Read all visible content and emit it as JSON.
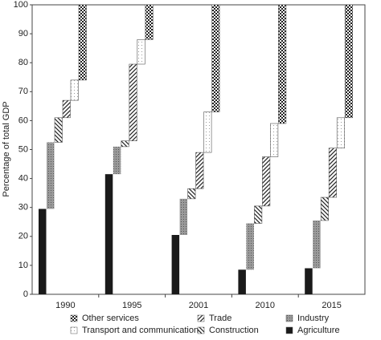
{
  "chart_data": {
    "type": "waterfall-stack",
    "y_label": "Percentage of total GDP",
    "categories": [
      "1990",
      "1995",
      "2001",
      "2010",
      "2015"
    ],
    "series": [
      {
        "name": "Agriculture",
        "color": "#1a1a1a",
        "pattern": "solid",
        "values": [
          29.5,
          41.5,
          20.5,
          8.5,
          9
        ]
      },
      {
        "name": "Industry",
        "color": "#8c8c8c",
        "pattern": "dots",
        "values": [
          23,
          9.5,
          12.5,
          16,
          16.5
        ]
      },
      {
        "name": "Construction",
        "color": "#ffffff",
        "pattern": "backslash",
        "values": [
          8.5,
          2,
          3.5,
          6,
          8
        ]
      },
      {
        "name": "Trade",
        "color": "#ffffff",
        "pattern": "slash",
        "values": [
          6,
          26.5,
          12.5,
          17,
          17
        ]
      },
      {
        "name": "Transport and communication",
        "color": "#ffffff",
        "pattern": "sparse",
        "values": [
          7,
          8.5,
          14,
          11.5,
          10.5
        ]
      },
      {
        "name": "Other services",
        "color": "#ffffff",
        "pattern": "checker",
        "values": [
          26,
          12,
          37,
          41,
          39
        ]
      }
    ],
    "ylim": [
      0,
      100
    ],
    "yticks": [
      0,
      10,
      20,
      30,
      40,
      50,
      60,
      70,
      80,
      90,
      100
    ]
  }
}
